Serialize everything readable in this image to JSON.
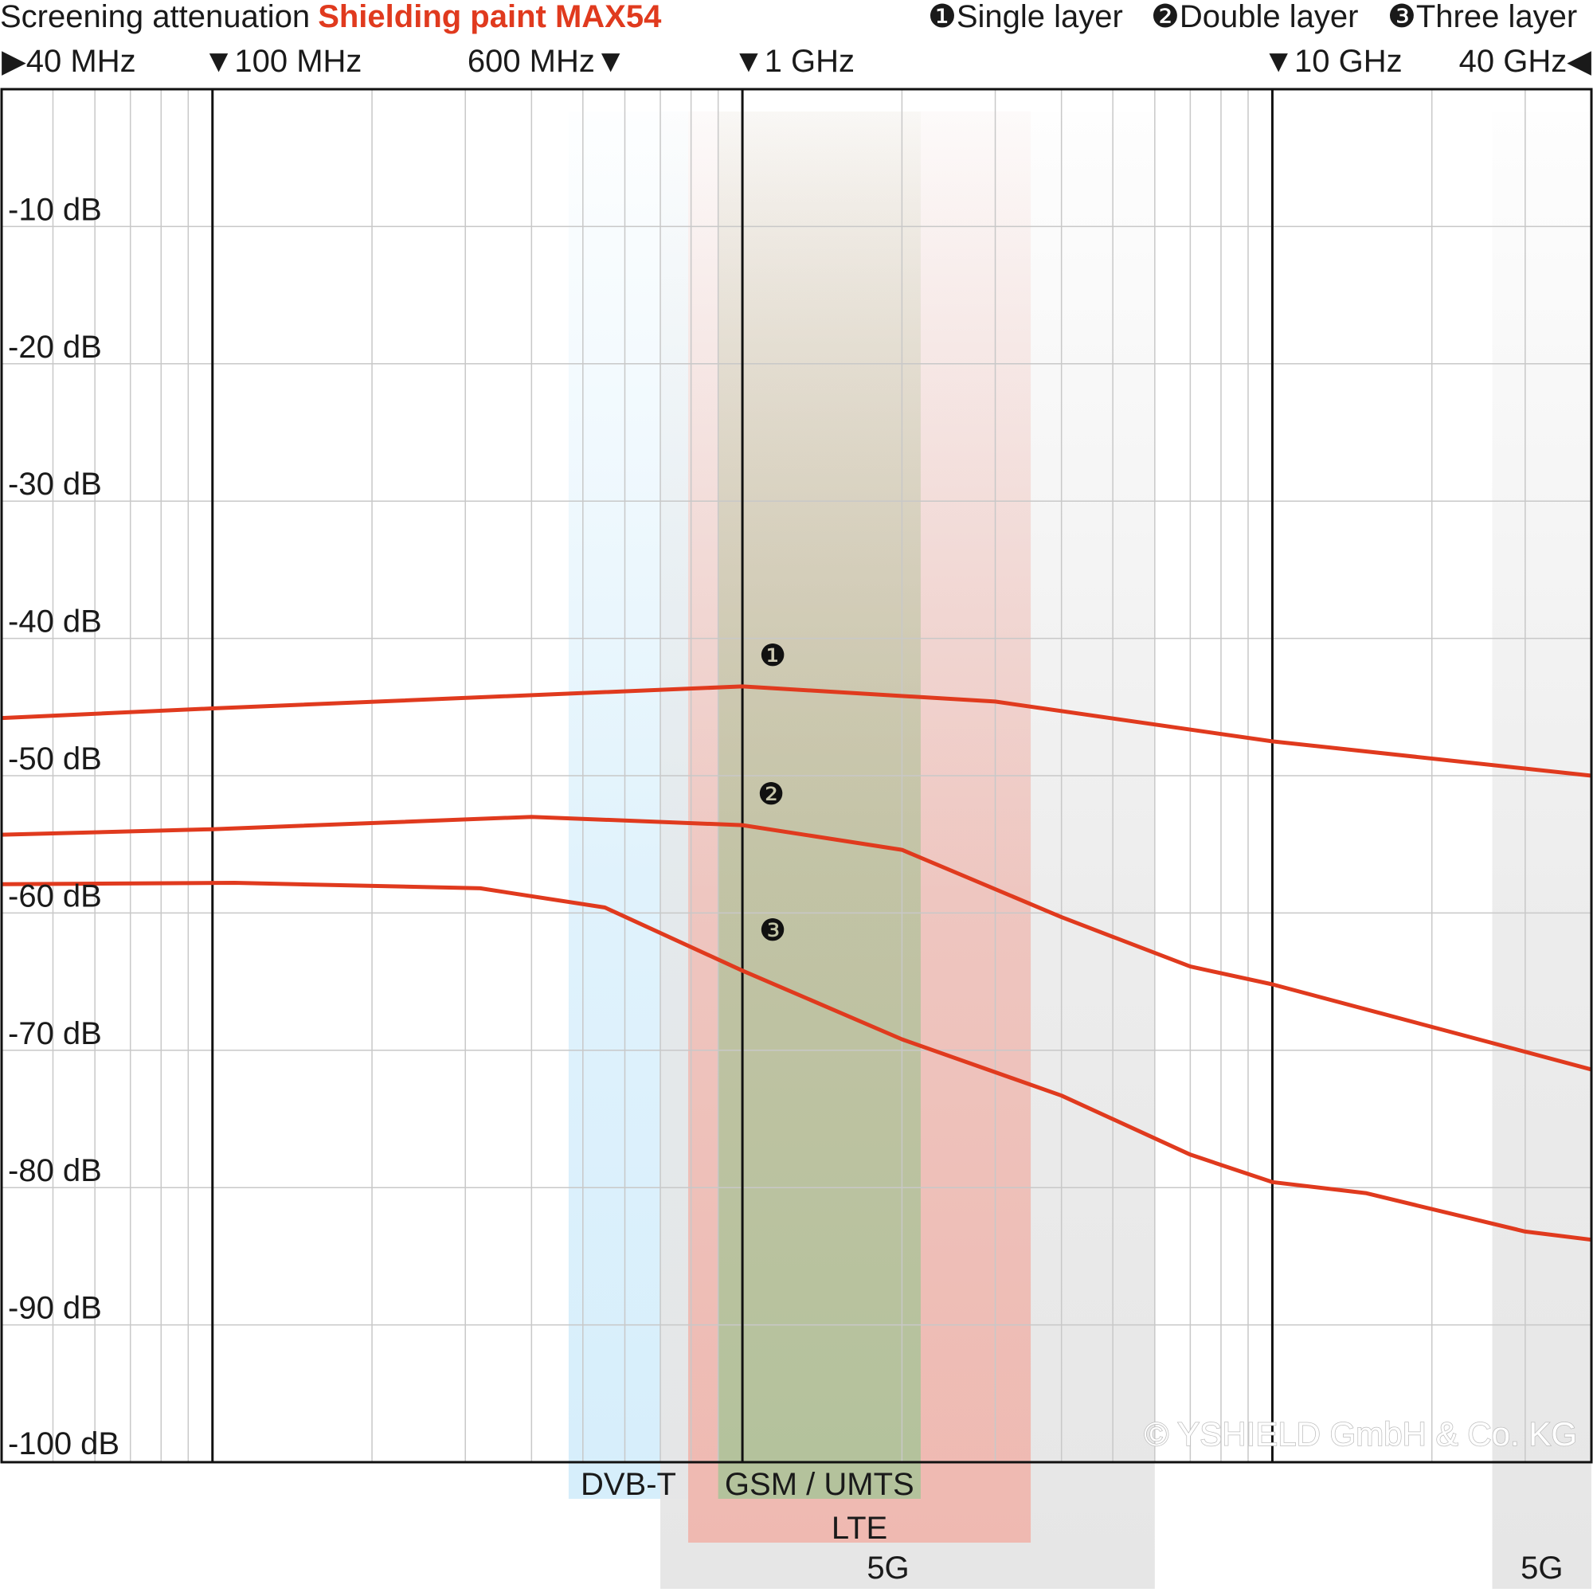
{
  "chart_data": {
    "type": "line",
    "title": "Screening attenuation",
    "title_accent": "Shielding paint MAX54",
    "x_scale": "log",
    "xlim_hz": [
      40000000,
      40000000000
    ],
    "ylim": [
      -100,
      0
    ],
    "y_ticks": [
      {
        "value": -10,
        "label": "-10 dB"
      },
      {
        "value": -20,
        "label": "-20 dB"
      },
      {
        "value": -30,
        "label": "-30 dB"
      },
      {
        "value": -40,
        "label": "-40 dB"
      },
      {
        "value": -50,
        "label": "-50 dB"
      },
      {
        "value": -60,
        "label": "-60 dB"
      },
      {
        "value": -70,
        "label": "-70 dB"
      },
      {
        "value": -80,
        "label": "-80 dB"
      },
      {
        "value": -90,
        "label": "-90 dB"
      },
      {
        "value": -100,
        "label": "-100 dB"
      }
    ],
    "freq_markers": [
      {
        "hz": 40000000,
        "label": "40 MHz",
        "arrow": "▶"
      },
      {
        "hz": 100000000,
        "label": "100 MHz",
        "arrow": "▼"
      },
      {
        "hz": 600000000,
        "label": "600 MHz",
        "arrow": "▼"
      },
      {
        "hz": 1000000000,
        "label": "1 GHz",
        "arrow": "▼"
      },
      {
        "hz": 10000000000,
        "label": "10 GHz",
        "arrow": "▼"
      },
      {
        "hz": 40000000000,
        "label": "40 GHz",
        "arrow": "◀"
      }
    ],
    "grid": true,
    "bands": [
      {
        "name": "DVB-T",
        "hz": [
          470000000,
          790000000
        ],
        "color": "#d6eefb"
      },
      {
        "name": "5G",
        "hz": [
          700000000,
          6000000000
        ],
        "color": "#e6e6e6"
      },
      {
        "name": "LTE",
        "hz": [
          790000000,
          3500000000
        ],
        "color": "#efb9b1"
      },
      {
        "name": "GSM / UMTS",
        "hz": [
          900000000,
          2170000000
        ],
        "color": "#b3c29c"
      },
      {
        "name": "5G",
        "hz": [
          26000000000,
          40000000000
        ],
        "color": "#e6e6e6"
      }
    ],
    "legend_entries": [
      {
        "symbol": "❶",
        "name": "Single layer"
      },
      {
        "symbol": "❷",
        "name": "Double layer"
      },
      {
        "symbol": "❸",
        "name": "Three layer"
      }
    ],
    "series": [
      {
        "name": "Single layer",
        "symbol": "❶",
        "color": "#e03a1e",
        "points": [
          [
            40000000,
            -45.8
          ],
          [
            100000000,
            -45.1
          ],
          [
            1000000000,
            -43.5
          ],
          [
            3000000000,
            -44.6
          ],
          [
            10000000000,
            -47.5
          ],
          [
            40000000000,
            -50
          ]
        ]
      },
      {
        "name": "Double layer",
        "symbol": "❷",
        "color": "#e03a1e",
        "points": [
          [
            40000000,
            -54.3
          ],
          [
            100000000,
            -53.9
          ],
          [
            400000000,
            -53.0
          ],
          [
            1000000000,
            -53.6
          ],
          [
            2000000000,
            -55.4
          ],
          [
            4000000000,
            -60.3
          ],
          [
            7000000000,
            -63.9
          ],
          [
            10000000000,
            -65.2
          ],
          [
            40000000000,
            -71.4
          ]
        ]
      },
      {
        "name": "Three layer",
        "symbol": "❸",
        "color": "#e03a1e",
        "points": [
          [
            40000000,
            -57.9
          ],
          [
            110000000,
            -57.8
          ],
          [
            320000000,
            -58.2
          ],
          [
            550000000,
            -59.6
          ],
          [
            1000000000,
            -64.2
          ],
          [
            2000000000,
            -69.2
          ],
          [
            4000000000,
            -73.3
          ],
          [
            7000000000,
            -77.6
          ],
          [
            10000000000,
            -79.6
          ],
          [
            15000000000,
            -80.4
          ],
          [
            30000000000,
            -83.2
          ],
          [
            40000000000,
            -83.8
          ]
        ]
      }
    ],
    "annotations": {
      "copyright": "© YSHIELD GmbH & Co. KG"
    }
  }
}
